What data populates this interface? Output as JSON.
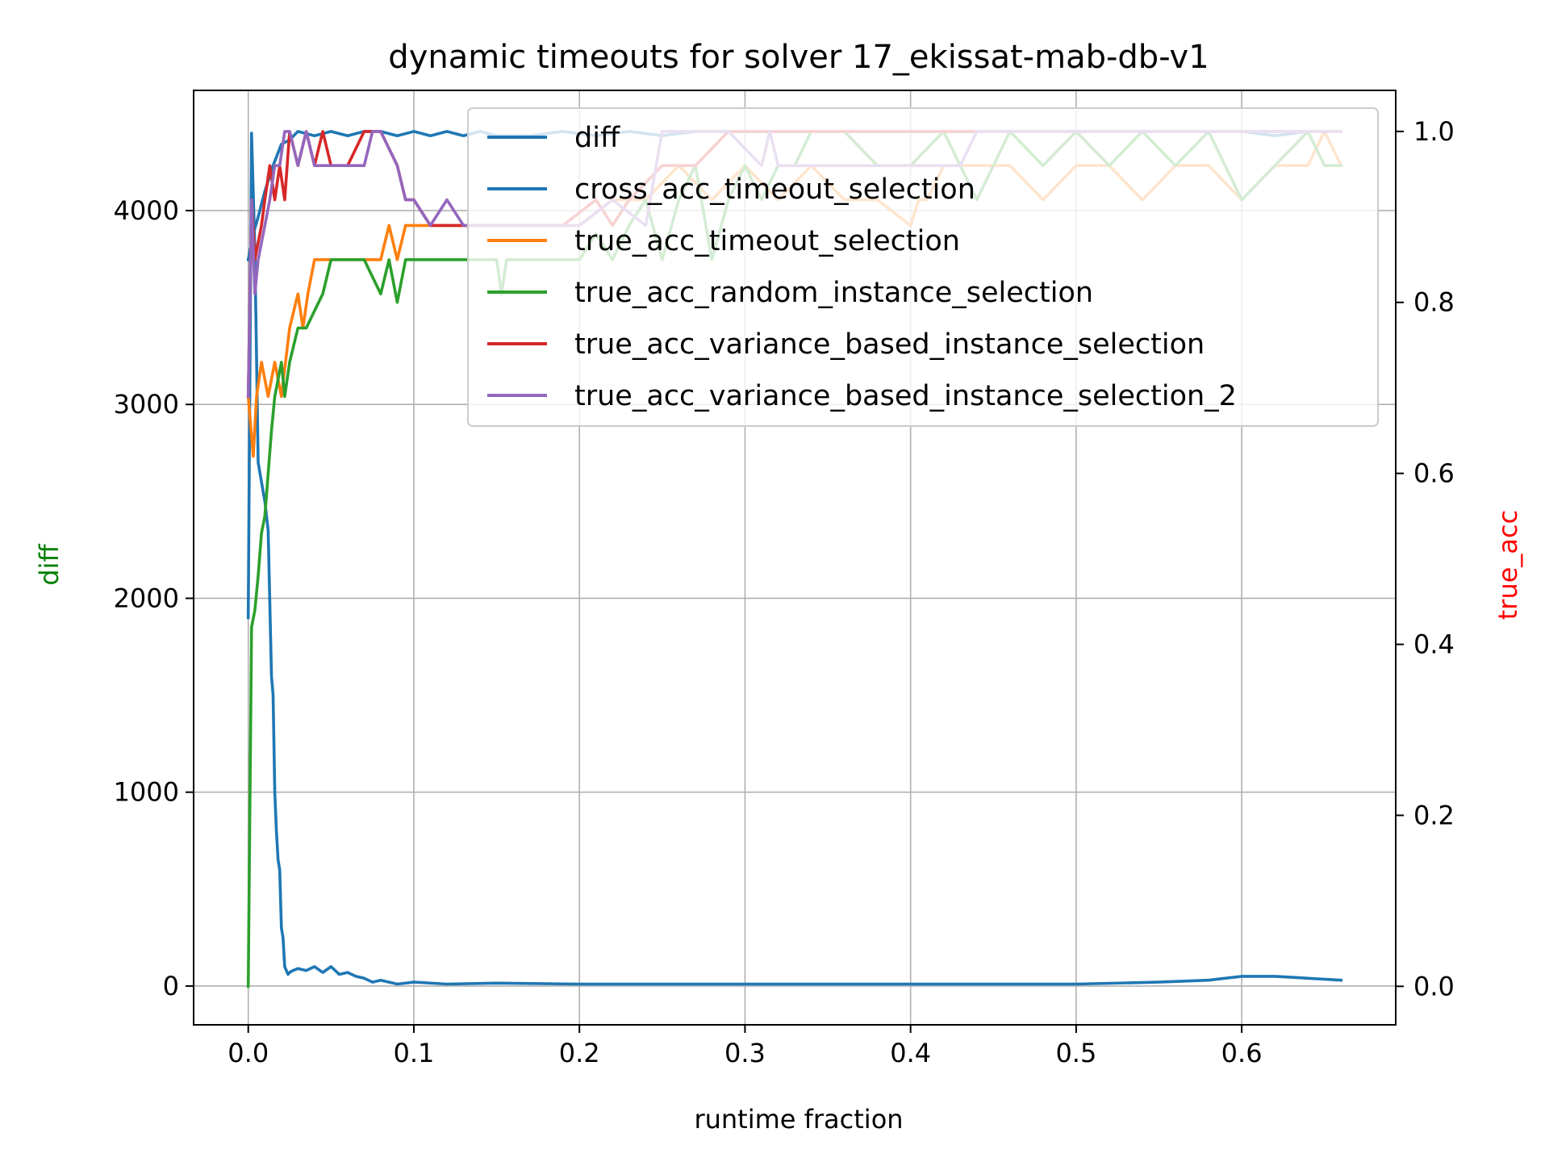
{
  "chart_data": {
    "type": "line",
    "title": "dynamic timeouts for solver 17_ekissat-mab-db-v1",
    "xlabel": "runtime fraction",
    "ylabel_left": "diff",
    "ylabel_right": "true_acc",
    "ylabel_left_color": "#008000",
    "ylabel_right_color": "#ff0000",
    "xlim": [
      -0.033,
      0.693
    ],
    "ylim_left": [
      -200,
      4620
    ],
    "ylim_right": [
      -0.045,
      1.048
    ],
    "xticks": [
      0.0,
      0.1,
      0.2,
      0.3,
      0.4,
      0.5,
      0.6
    ],
    "xtick_labels": [
      "0.0",
      "0.1",
      "0.2",
      "0.3",
      "0.4",
      "0.5",
      "0.6"
    ],
    "yticks_left": [
      0,
      1000,
      2000,
      3000,
      4000
    ],
    "ytick_labels_left": [
      "0",
      "1000",
      "2000",
      "3000",
      "4000"
    ],
    "yticks_right": [
      0.0,
      0.2,
      0.4,
      0.6,
      0.8,
      1.0
    ],
    "ytick_labels_right": [
      "0.0",
      "0.2",
      "0.4",
      "0.6",
      "0.8",
      "1.0"
    ],
    "grid": true,
    "legend_position": "upper right",
    "series": [
      {
        "name": "diff",
        "axis": "left",
        "color": "#1f77b4",
        "x": [
          0.0,
          0.002,
          0.004,
          0.006,
          0.008,
          0.01,
          0.012,
          0.014,
          0.015,
          0.016,
          0.017,
          0.018,
          0.019,
          0.02,
          0.021,
          0.022,
          0.023,
          0.024,
          0.025,
          0.027,
          0.03,
          0.035,
          0.04,
          0.045,
          0.05,
          0.055,
          0.06,
          0.065,
          0.07,
          0.075,
          0.08,
          0.09,
          0.1,
          0.12,
          0.15,
          0.2,
          0.25,
          0.3,
          0.35,
          0.4,
          0.45,
          0.5,
          0.55,
          0.58,
          0.6,
          0.61,
          0.62,
          0.63,
          0.64,
          0.65,
          0.66
        ],
        "values": [
          1900,
          4400,
          3800,
          2700,
          2600,
          2500,
          2350,
          1600,
          1500,
          1000,
          800,
          650,
          600,
          300,
          250,
          100,
          80,
          60,
          70,
          80,
          90,
          80,
          100,
          70,
          100,
          60,
          70,
          50,
          40,
          20,
          30,
          10,
          20,
          10,
          15,
          10,
          10,
          10,
          10,
          10,
          10,
          10,
          20,
          30,
          50,
          50,
          50,
          45,
          40,
          35,
          30
        ]
      },
      {
        "name": "cross_acc_timeout_selection",
        "axis": "right",
        "color": "#1f77b4",
        "x": [
          0.0,
          0.003,
          0.006,
          0.01,
          0.015,
          0.02,
          0.025,
          0.03,
          0.04,
          0.05,
          0.06,
          0.07,
          0.08,
          0.09,
          0.1,
          0.11,
          0.12,
          0.13,
          0.14,
          0.15,
          0.17,
          0.19,
          0.21,
          0.23,
          0.25,
          0.27,
          0.29,
          0.31,
          0.33,
          0.35,
          0.4,
          0.45,
          0.5,
          0.55,
          0.6,
          0.62,
          0.64,
          0.66
        ],
        "values": [
          0.85,
          0.88,
          0.9,
          0.93,
          0.96,
          0.985,
          0.99,
          1.0,
          0.995,
          1.0,
          0.995,
          1.0,
          1.0,
          0.995,
          1.0,
          0.995,
          1.0,
          0.995,
          1.0,
          0.995,
          0.995,
          1.0,
          0.995,
          1.0,
          0.995,
          1.0,
          1.0,
          1.0,
          1.0,
          1.0,
          1.0,
          1.0,
          1.0,
          1.0,
          1.0,
          0.995,
          1.0,
          1.0
        ]
      },
      {
        "name": "true_acc_timeout_selection",
        "axis": "right",
        "color": "#ff7f0e",
        "x": [
          0.0,
          0.003,
          0.005,
          0.008,
          0.012,
          0.016,
          0.02,
          0.025,
          0.03,
          0.033,
          0.036,
          0.04,
          0.05,
          0.06,
          0.07,
          0.08,
          0.085,
          0.09,
          0.095,
          0.1,
          0.12,
          0.14,
          0.16,
          0.18,
          0.2,
          0.22,
          0.24,
          0.26,
          0.28,
          0.3,
          0.32,
          0.34,
          0.36,
          0.38,
          0.4,
          0.405,
          0.41,
          0.42,
          0.44,
          0.46,
          0.48,
          0.5,
          0.52,
          0.54,
          0.56,
          0.58,
          0.6,
          0.62,
          0.64,
          0.65,
          0.66
        ],
        "values": [
          0.69,
          0.62,
          0.69,
          0.73,
          0.69,
          0.73,
          0.69,
          0.77,
          0.81,
          0.77,
          0.81,
          0.85,
          0.85,
          0.85,
          0.85,
          0.85,
          0.89,
          0.85,
          0.89,
          0.89,
          0.89,
          0.89,
          0.89,
          0.89,
          0.89,
          0.92,
          0.92,
          0.96,
          0.92,
          0.96,
          0.92,
          0.96,
          0.92,
          0.92,
          0.89,
          0.92,
          0.92,
          0.96,
          0.96,
          0.96,
          0.92,
          0.96,
          0.96,
          0.92,
          0.96,
          0.96,
          0.92,
          0.96,
          0.96,
          1.0,
          0.96
        ]
      },
      {
        "name": "true_acc_random_instance_selection",
        "axis": "right",
        "color": "#2ca02c",
        "x": [
          0.0,
          0.002,
          0.004,
          0.006,
          0.008,
          0.01,
          0.012,
          0.014,
          0.016,
          0.018,
          0.02,
          0.022,
          0.025,
          0.03,
          0.035,
          0.04,
          0.045,
          0.05,
          0.055,
          0.06,
          0.07,
          0.08,
          0.085,
          0.09,
          0.095,
          0.1,
          0.12,
          0.15,
          0.153,
          0.156,
          0.2,
          0.21,
          0.22,
          0.23,
          0.24,
          0.25,
          0.26,
          0.27,
          0.28,
          0.29,
          0.3,
          0.31,
          0.32,
          0.33,
          0.34,
          0.36,
          0.38,
          0.4,
          0.42,
          0.44,
          0.46,
          0.48,
          0.5,
          0.52,
          0.54,
          0.56,
          0.58,
          0.6,
          0.62,
          0.64,
          0.65,
          0.66
        ],
        "values": [
          0.0,
          0.42,
          0.44,
          0.48,
          0.53,
          0.55,
          0.6,
          0.65,
          0.69,
          0.71,
          0.73,
          0.69,
          0.73,
          0.77,
          0.77,
          0.79,
          0.81,
          0.85,
          0.85,
          0.85,
          0.85,
          0.81,
          0.85,
          0.8,
          0.85,
          0.85,
          0.85,
          0.85,
          0.81,
          0.85,
          0.85,
          0.88,
          0.85,
          0.89,
          0.92,
          0.85,
          0.92,
          0.96,
          0.85,
          0.92,
          0.96,
          0.92,
          0.96,
          0.96,
          1.0,
          1.0,
          0.96,
          0.96,
          1.0,
          0.92,
          1.0,
          0.96,
          1.0,
          0.96,
          1.0,
          0.96,
          1.0,
          0.92,
          0.96,
          1.0,
          0.96,
          0.96
        ]
      },
      {
        "name": "true_acc_variance_based_instance_selection",
        "axis": "right",
        "color": "#d62728",
        "x": [
          0.0,
          0.002,
          0.004,
          0.006,
          0.008,
          0.01,
          0.013,
          0.016,
          0.019,
          0.022,
          0.025,
          0.03,
          0.035,
          0.04,
          0.045,
          0.05,
          0.06,
          0.07,
          0.08,
          0.09,
          0.095,
          0.1,
          0.11,
          0.13,
          0.16,
          0.19,
          0.21,
          0.22,
          0.23,
          0.25,
          0.27,
          0.29,
          0.31,
          0.33,
          0.35,
          0.4,
          0.45,
          0.5,
          0.55,
          0.6,
          0.62,
          0.64,
          0.66
        ],
        "values": [
          0.69,
          0.92,
          0.85,
          0.87,
          0.89,
          0.92,
          0.96,
          0.92,
          0.96,
          0.92,
          1.0,
          0.96,
          1.0,
          0.96,
          1.0,
          0.96,
          0.96,
          1.0,
          1.0,
          0.96,
          0.92,
          0.92,
          0.89,
          0.89,
          0.89,
          0.89,
          0.92,
          0.89,
          0.92,
          0.96,
          0.96,
          1.0,
          1.0,
          1.0,
          1.0,
          1.0,
          1.0,
          1.0,
          1.0,
          1.0,
          1.0,
          1.0,
          1.0
        ]
      },
      {
        "name": "true_acc_variance_based_instance_selection_2",
        "axis": "right",
        "color": "#9467bd",
        "x": [
          0.0,
          0.002,
          0.004,
          0.006,
          0.008,
          0.01,
          0.013,
          0.016,
          0.019,
          0.022,
          0.025,
          0.03,
          0.035,
          0.04,
          0.05,
          0.06,
          0.07,
          0.075,
          0.08,
          0.09,
          0.095,
          0.1,
          0.11,
          0.12,
          0.13,
          0.14,
          0.16,
          0.2,
          0.22,
          0.24,
          0.25,
          0.27,
          0.29,
          0.31,
          0.315,
          0.32,
          0.33,
          0.35,
          0.4,
          0.43,
          0.44,
          0.5,
          0.55,
          0.6,
          0.66
        ],
        "values": [
          0.69,
          0.92,
          0.81,
          0.85,
          0.87,
          0.89,
          0.92,
          0.96,
          0.96,
          1.0,
          1.0,
          0.96,
          1.0,
          0.96,
          0.96,
          0.96,
          0.96,
          1.0,
          1.0,
          0.96,
          0.92,
          0.92,
          0.89,
          0.92,
          0.89,
          0.89,
          0.89,
          0.89,
          0.92,
          0.89,
          1.0,
          1.0,
          1.0,
          0.96,
          1.0,
          0.96,
          0.96,
          0.96,
          0.96,
          0.96,
          1.0,
          1.0,
          1.0,
          1.0,
          1.0
        ]
      }
    ]
  }
}
